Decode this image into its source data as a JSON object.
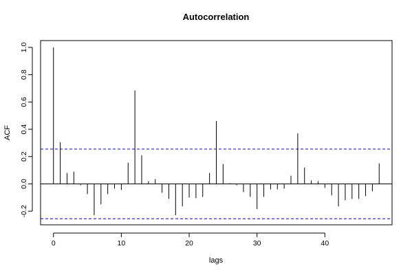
{
  "chart_data": {
    "type": "bar",
    "title": "Autocorrelation",
    "xlabel": "lags",
    "ylabel": "ACF",
    "xlim": [
      -1.9,
      49.9
    ],
    "ylim": [
      -0.3,
      1.05
    ],
    "x_ticks": [
      0,
      10,
      20,
      30,
      40
    ],
    "y_ticks": [
      -0.2,
      0.0,
      0.2,
      0.4,
      0.6,
      0.8,
      1.0
    ],
    "y_tick_labels": [
      "-0.2",
      "0.0",
      "0.2",
      "0.4",
      "0.6",
      "0.8",
      "1.0"
    ],
    "lags": [
      0,
      1,
      2,
      3,
      4,
      5,
      6,
      7,
      8,
      9,
      10,
      11,
      12,
      13,
      14,
      15,
      16,
      17,
      18,
      19,
      20,
      21,
      22,
      23,
      24,
      25,
      26,
      27,
      28,
      29,
      30,
      31,
      32,
      33,
      34,
      35,
      36,
      37,
      38,
      39,
      40,
      41,
      42,
      43,
      44,
      45,
      46,
      47,
      48
    ],
    "values": [
      1.0,
      0.305,
      0.08,
      0.09,
      -0.01,
      -0.075,
      -0.23,
      -0.15,
      -0.075,
      -0.035,
      -0.045,
      0.155,
      0.685,
      0.21,
      0.02,
      0.035,
      -0.065,
      -0.11,
      -0.23,
      -0.165,
      -0.1,
      -0.105,
      -0.095,
      0.08,
      0.46,
      0.145,
      0.005,
      -0.01,
      -0.06,
      -0.095,
      -0.185,
      -0.095,
      -0.04,
      -0.04,
      -0.035,
      0.06,
      0.37,
      0.12,
      0.025,
      0.02,
      -0.03,
      -0.085,
      -0.165,
      -0.12,
      -0.11,
      -0.11,
      -0.09,
      -0.055,
      0.15
    ],
    "confidence_bound": 0.255,
    "colors": {
      "bars": "#000000",
      "bounds": "#0000cc",
      "zero_line": "#000000",
      "frame": "#000000"
    }
  }
}
